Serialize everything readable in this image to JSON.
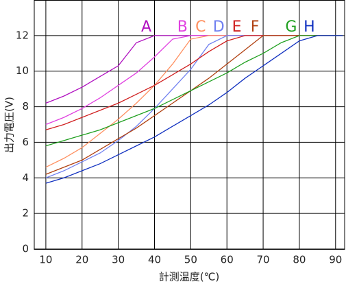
{
  "chart_data": {
    "type": "line",
    "x_label": "計測温度(℃)",
    "y_label": "出力電圧(V)",
    "x": [
      10,
      15,
      20,
      25,
      30,
      35,
      40,
      45,
      50,
      55,
      60,
      65,
      70,
      75,
      80,
      85,
      90,
      92
    ],
    "series": [
      {
        "name": "A",
        "color": "#b010c0",
        "values": [
          8.2,
          8.6,
          9.1,
          9.7,
          10.3,
          11.6,
          12,
          12,
          12,
          12,
          12,
          12,
          12,
          12,
          12,
          12,
          12,
          12
        ]
      },
      {
        "name": "B",
        "color": "#e040e0",
        "values": [
          7.0,
          7.4,
          7.9,
          8.5,
          9.2,
          9.9,
          10.8,
          11.8,
          12,
          12,
          12,
          12,
          12,
          12,
          12,
          12,
          12,
          12
        ]
      },
      {
        "name": "C",
        "color": "#ff9060",
        "values": [
          4.6,
          5.1,
          5.7,
          6.5,
          7.3,
          8.2,
          9.2,
          10.4,
          11.8,
          12,
          12,
          12,
          12,
          12,
          12,
          12,
          12,
          12
        ]
      },
      {
        "name": "D",
        "color": "#7080f0",
        "values": [
          4.0,
          4.4,
          4.9,
          5.4,
          6.1,
          6.9,
          7.9,
          9.0,
          10.1,
          11.5,
          12,
          12,
          12,
          12,
          12,
          12,
          12,
          12
        ]
      },
      {
        "name": "E",
        "color": "#d02020",
        "values": [
          6.7,
          7.0,
          7.4,
          7.8,
          8.2,
          8.7,
          9.2,
          9.8,
          10.4,
          11.1,
          11.7,
          12,
          12,
          12,
          12,
          12,
          12,
          12
        ]
      },
      {
        "name": "F",
        "color": "#b04010",
        "values": [
          4.2,
          4.6,
          5.0,
          5.6,
          6.2,
          6.8,
          7.5,
          8.2,
          8.9,
          9.6,
          10.4,
          11.2,
          12,
          12,
          12,
          12,
          12,
          12
        ]
      },
      {
        "name": "G",
        "color": "#20a020",
        "values": [
          5.8,
          6.1,
          6.4,
          6.7,
          7.1,
          7.5,
          7.9,
          8.4,
          8.9,
          9.4,
          9.9,
          10.5,
          11.0,
          11.6,
          12,
          12,
          12,
          12
        ]
      },
      {
        "name": "H",
        "color": "#1030c0",
        "values": [
          3.7,
          4.0,
          4.4,
          4.8,
          5.3,
          5.8,
          6.3,
          6.9,
          7.5,
          8.1,
          8.8,
          9.6,
          10.3,
          11.0,
          11.7,
          12,
          12,
          12
        ]
      }
    ],
    "xlim": [
      6.8,
      92.5
    ],
    "xticks": [
      10,
      20,
      30,
      40,
      50,
      60,
      70,
      80,
      90
    ],
    "ylim": [
      0,
      14
    ],
    "yticks": [
      0,
      2,
      4,
      6,
      8,
      10,
      12
    ],
    "grid": true
  }
}
